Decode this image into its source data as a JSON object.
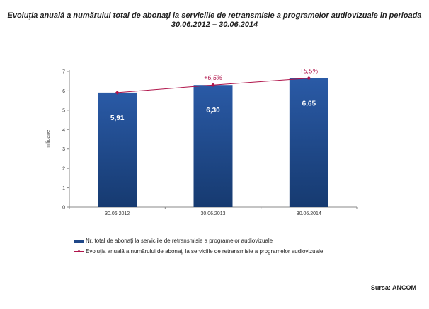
{
  "title": {
    "line1": "Evoluţia anuală a numărului total de abonaţi la serviciile de retransmisie a programelor audiovizuale în perioada",
    "line2": "30.06.2012 – 30.06.2014"
  },
  "source": "Sursa: ANCOM",
  "colors": {
    "bar": "#1f4788",
    "bar_light": "#2a5aa6",
    "line": "#b0144a"
  },
  "chart_data": {
    "type": "bar",
    "categories": [
      "30.06.2012",
      "30.06.2013",
      "30.06.2014"
    ],
    "ylabel": "milioane",
    "ylim": [
      0,
      7
    ],
    "yticks": [
      0,
      1,
      2,
      3,
      4,
      5,
      6,
      7
    ],
    "series": [
      {
        "name": "Nr. total de abonaţi la serviciile de retransmisie a programelor audiovizuale",
        "kind": "bar",
        "values": [
          5.91,
          6.3,
          6.65
        ],
        "labels": [
          "5,91",
          "6,30",
          "6,65"
        ]
      },
      {
        "name": "Evoluţia anuală a numărului de abonaţi la serviciile de retransmisie a programelor audiovizuale",
        "kind": "line",
        "values": [
          5.91,
          6.3,
          6.65
        ],
        "annotations": [
          "",
          "+6,5%",
          "+5,5%"
        ]
      }
    ],
    "grid": false,
    "legend_position": "bottom"
  }
}
